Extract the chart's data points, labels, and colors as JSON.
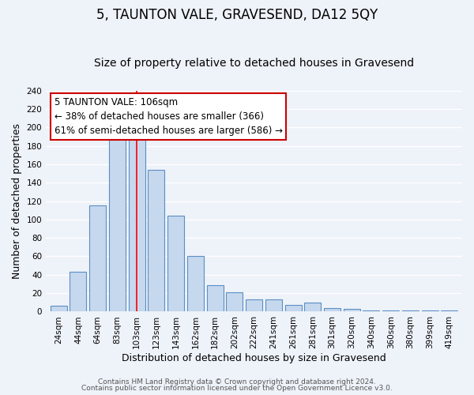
{
  "title": "5, TAUNTON VALE, GRAVESEND, DA12 5QY",
  "subtitle": "Size of property relative to detached houses in Gravesend",
  "xlabel": "Distribution of detached houses by size in Gravesend",
  "ylabel": "Number of detached properties",
  "bar_labels": [
    "24sqm",
    "44sqm",
    "64sqm",
    "83sqm",
    "103sqm",
    "123sqm",
    "143sqm",
    "162sqm",
    "182sqm",
    "202sqm",
    "222sqm",
    "241sqm",
    "261sqm",
    "281sqm",
    "301sqm",
    "320sqm",
    "340sqm",
    "360sqm",
    "380sqm",
    "399sqm",
    "419sqm"
  ],
  "bar_heights": [
    6,
    43,
    115,
    188,
    188,
    154,
    104,
    60,
    29,
    21,
    13,
    13,
    7,
    10,
    4,
    3,
    1,
    1,
    1,
    1,
    1
  ],
  "bar_color": "#c5d8ee",
  "bar_edge_color": "#5b8ec4",
  "red_line_x": 4,
  "annotation_box_text": "5 TAUNTON VALE: 106sqm\n← 38% of detached houses are smaller (366)\n61% of semi-detached houses are larger (586) →",
  "ylim": [
    0,
    240
  ],
  "yticks": [
    0,
    20,
    40,
    60,
    80,
    100,
    120,
    140,
    160,
    180,
    200,
    220,
    240
  ],
  "footer_line1": "Contains HM Land Registry data © Crown copyright and database right 2024.",
  "footer_line2": "Contains public sector information licensed under the Open Government Licence v3.0.",
  "bg_color": "#eef2f9",
  "grid_color": "#ffffff",
  "title_fontsize": 12,
  "subtitle_fontsize": 10,
  "axis_label_fontsize": 9,
  "tick_fontsize": 7.5,
  "annotation_fontsize": 8.5,
  "footer_fontsize": 6.5
}
